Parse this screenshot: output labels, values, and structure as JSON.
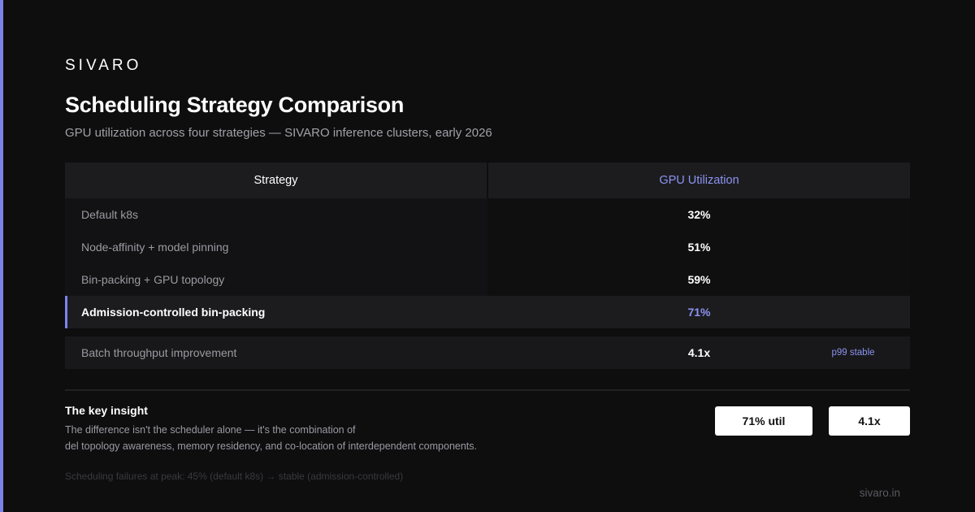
{
  "header": {
    "brand": "SIVARO",
    "title": "Scheduling Strategy Comparison",
    "subtitle": "GPU utilization across four strategies — SIVARO inference clusters, early 2026"
  },
  "table": {
    "columns": [
      "Strategy",
      "GPU Utilization"
    ],
    "rows": [
      [
        "Default k8s",
        "32%"
      ],
      [
        "Node-affinity + model pinning",
        "51%"
      ],
      [
        "Bin-packing + GPU topology",
        "59%"
      ],
      [
        "Admission-controlled bin-packing",
        "71%"
      ]
    ],
    "extra_row": {
      "label": "Batch throughput improvement",
      "value": "4.1x",
      "note": "p99 stable"
    }
  },
  "insight": {
    "title": "The key insight",
    "lines": [
      "The difference isn't the scheduler alone — it's the combination of",
      "del topology awareness, memory residency, and co-location of interdependent components."
    ],
    "buttons": [
      "71% util",
      "4.1x"
    ]
  },
  "footnote": "Scheduling failures at peak: 45% (default k8s) → stable (admission-controlled)",
  "site": "sivaro.in"
}
